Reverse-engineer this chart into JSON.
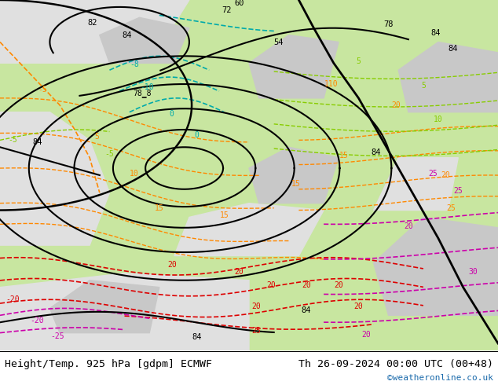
{
  "title_left": "Height/Temp. 925 hPa [gdpm] ECMWF",
  "title_right": "Th 26-09-2024 00:00 UTC (00+48)",
  "credit": "©weatheronline.co.uk",
  "background_color": "#ffffff",
  "land_green": "#c8e6a0",
  "land_gray": "#b0b0b0",
  "land_light_gray": "#c8c8c8",
  "credit_color": "#1a6aab",
  "figsize": [
    6.34,
    4.9
  ],
  "dpi": 100
}
